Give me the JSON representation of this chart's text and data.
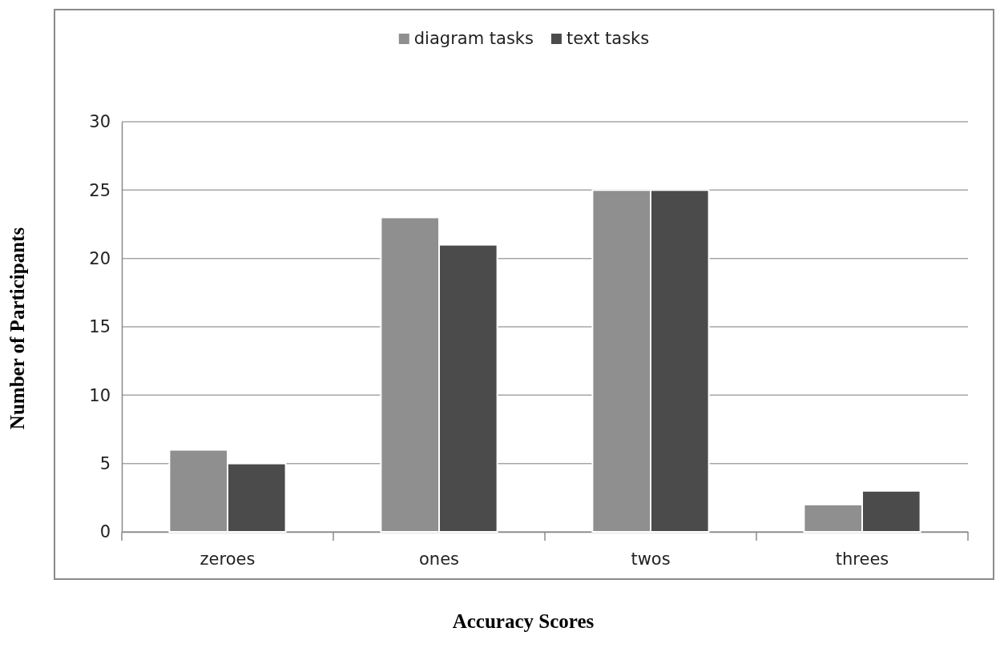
{
  "chart_data": {
    "type": "bar",
    "xlabel": "Accuracy Scores",
    "ylabel": "Number of Participants",
    "categories": [
      "zeroes",
      "ones",
      "twos",
      "threes"
    ],
    "series": [
      {
        "name": "diagram tasks",
        "color": "#8f8f8f",
        "values": [
          6,
          23,
          25,
          2
        ]
      },
      {
        "name": "text tasks",
        "color": "#4b4b4b",
        "values": [
          5,
          21,
          25,
          3
        ]
      }
    ],
    "ylim": [
      0,
      30
    ],
    "yticks": [
      0,
      5,
      10,
      15,
      20,
      25,
      30
    ],
    "grid": "y",
    "legend": "top"
  }
}
